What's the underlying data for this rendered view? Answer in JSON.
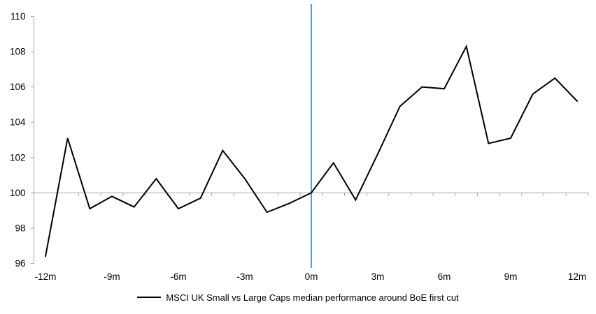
{
  "chart_data": {
    "type": "line",
    "title": "",
    "categories": [
      "-12m",
      "-11m",
      "-10m",
      "-9m",
      "-8m",
      "-7m",
      "-6m",
      "-5m",
      "-4m",
      "-3m",
      "-2m",
      "-1m",
      "0m",
      "1m",
      "2m",
      "3m",
      "4m",
      "5m",
      "6m",
      "7m",
      "8m",
      "9m",
      "10m",
      "11m",
      "12m"
    ],
    "x_tick_labels": [
      "-12m",
      "-9m",
      "-6m",
      "-3m",
      "0m",
      "3m",
      "6m",
      "9m",
      "12m"
    ],
    "series": [
      {
        "name": "MSCI UK Small vs Large Caps median performance around BoE first cut",
        "color": "#000000",
        "values": [
          96.4,
          103.1,
          99.1,
          99.8,
          99.2,
          100.8,
          99.1,
          99.7,
          102.4,
          100.8,
          98.9,
          99.4,
          100.0,
          101.7,
          99.6,
          102.2,
          104.9,
          106.0,
          105.9,
          108.3,
          102.8,
          103.1,
          105.6,
          106.5,
          105.2
        ]
      }
    ],
    "ylim": [
      96,
      110
    ],
    "y_ticks": [
      96,
      98,
      100,
      102,
      104,
      106,
      108,
      110
    ],
    "baseline": 100,
    "event_line": {
      "at": "0m",
      "color": "#5B9BD5"
    },
    "colors": {
      "axis": "#A6A6A6",
      "background": "#FFFFFF"
    },
    "grid": "baseline-only",
    "legend_position": "bottom"
  }
}
